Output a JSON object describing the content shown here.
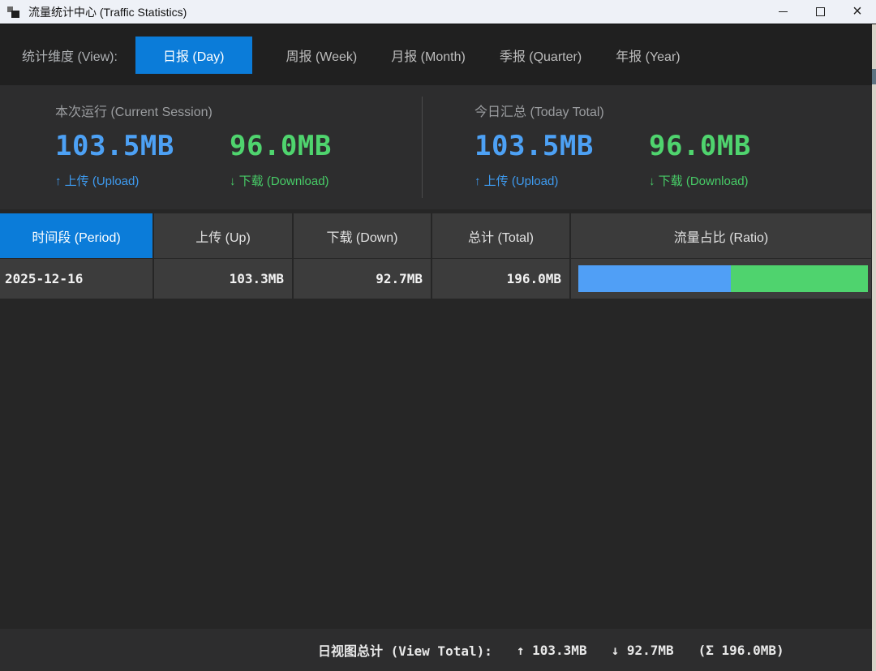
{
  "window": {
    "title": "流量统计中心 (Traffic Statistics)",
    "icons": {
      "app": "stacked-squares",
      "minimize": "—",
      "maximize": "□",
      "close": "×"
    }
  },
  "view_bar": {
    "label": "统计维度 (View):",
    "tabs": [
      {
        "label": "日报 (Day)",
        "active": true
      },
      {
        "label": "周报 (Week)",
        "active": false
      },
      {
        "label": "月报 (Month)",
        "active": false
      },
      {
        "label": "季报 (Quarter)",
        "active": false
      },
      {
        "label": "年报 (Year)",
        "active": false
      }
    ]
  },
  "stats": {
    "sections": [
      {
        "title": "本次运行 (Current Session)",
        "upload_value": "103.5MB",
        "upload_label": "↑ 上传 (Upload)",
        "download_value": "96.0MB",
        "download_label": "↓ 下载 (Download)"
      },
      {
        "title": "今日汇总 (Today Total)",
        "upload_value": "103.5MB",
        "upload_label": "↑ 上传 (Upload)",
        "download_value": "96.0MB",
        "download_label": "↓ 下载 (Download)"
      }
    ]
  },
  "table": {
    "headers": [
      "时间段 (Period)",
      "上传 (Up)",
      "下载 (Down)",
      "总计 (Total)",
      "流量占比 (Ratio)"
    ],
    "rows": [
      {
        "period": "2025-12-16",
        "up": "103.3MB",
        "down": "92.7MB",
        "total": "196.0MB",
        "ratio_up_pct": 52.7,
        "ratio_down_pct": 47.3
      }
    ]
  },
  "footer": {
    "label": "日视图总计 (View Total):",
    "up": "↑ 103.3MB",
    "down": "↓ 92.7MB",
    "total": "(Σ 196.0MB)"
  },
  "colors": {
    "accent_blue": "#0b7cd9",
    "upload_blue": "#4da1f5",
    "download_green": "#4fd46e",
    "bar_blue": "#509ff6",
    "bar_green": "#4fd36e",
    "titlebar_bg": "#eef1f7",
    "panel_bg": "#2d2d2e",
    "window_bg": "#262626"
  }
}
